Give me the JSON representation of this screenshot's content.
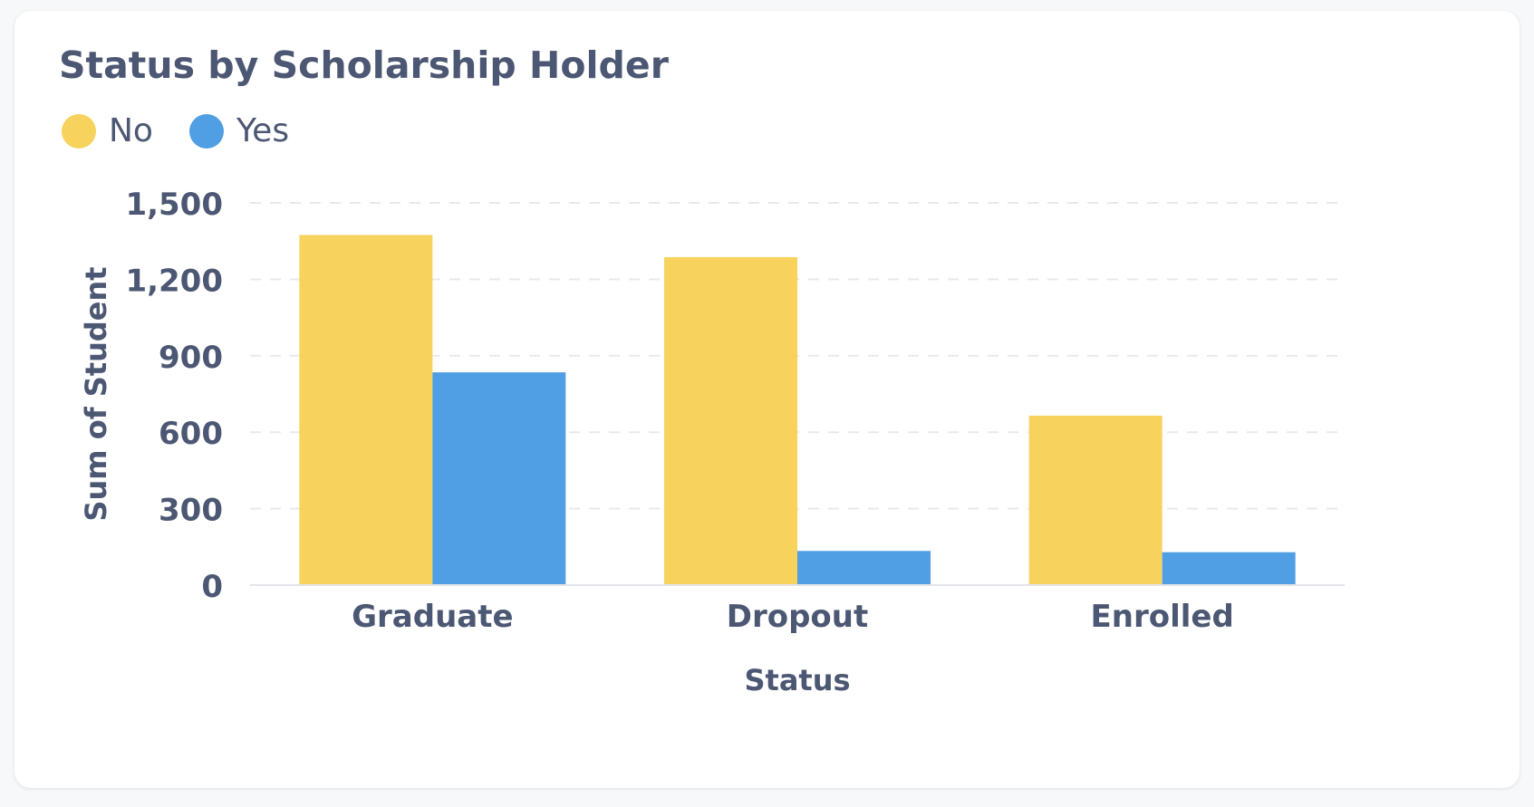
{
  "card": {
    "title": "Status by Scholarship Holder"
  },
  "legend": [
    {
      "label": "No",
      "color": "#f7d35d"
    },
    {
      "label": "Yes",
      "color": "#509ee3"
    }
  ],
  "chart_data": {
    "type": "bar",
    "title": "Status by Scholarship Holder",
    "xlabel": "Status",
    "ylabel": "Sum of Student",
    "categories": [
      "Graduate",
      "Dropout",
      "Enrolled"
    ],
    "series": [
      {
        "name": "No",
        "color": "#f7d35d",
        "values": [
          1374,
          1287,
          665
        ]
      },
      {
        "name": "Yes",
        "color": "#509ee3",
        "values": [
          835,
          134,
          129
        ]
      }
    ],
    "ylim": [
      0,
      1500
    ],
    "yticks": [
      0,
      300,
      600,
      900,
      1200,
      1500
    ],
    "ytick_labels": [
      "0",
      "300",
      "600",
      "900",
      "1,200",
      "1,500"
    ],
    "grid": true,
    "legend_position": "top-left"
  }
}
